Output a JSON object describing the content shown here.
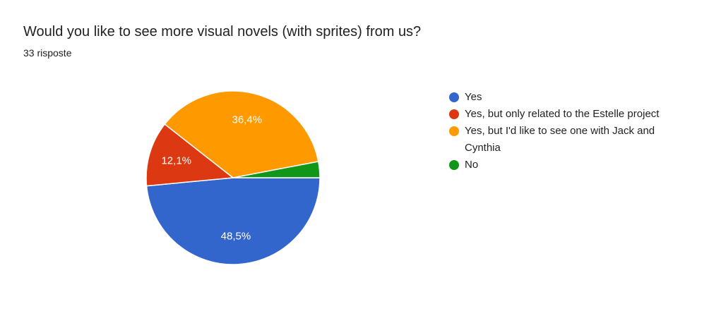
{
  "chart_data": {
    "type": "pie",
    "title": "Would you like to see more visual novels (with sprites) from us?",
    "subtitle": "33 risposte",
    "categories": [
      "Yes",
      "Yes, but only related to the Estelle project",
      "Yes, but I'd like to see one with Jack and Cynthia",
      "No"
    ],
    "values": [
      48.5,
      12.1,
      36.4,
      3.0
    ],
    "value_labels": [
      "48,5%",
      "12,1%",
      "36,4%",
      null
    ],
    "colors": [
      "#3366cc",
      "#dc3912",
      "#ff9900",
      "#109618"
    ]
  }
}
